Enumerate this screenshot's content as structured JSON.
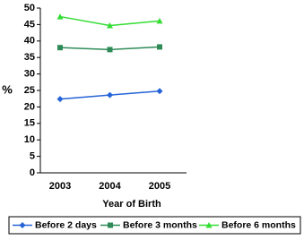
{
  "chart_data": {
    "type": "line",
    "categories": [
      "2003",
      "2004",
      "2005"
    ],
    "x_label": "Year of Birth",
    "y_label": "%",
    "ylim": [
      0,
      50
    ],
    "yticks": [
      0,
      5,
      10,
      15,
      20,
      25,
      30,
      35,
      40,
      45,
      50
    ],
    "legend": "bottom",
    "series": [
      {
        "name": "Before 2 days",
        "color": "#2563d6",
        "marker": "diamond",
        "values": [
          22.4,
          23.6,
          24.8
        ]
      },
      {
        "name": "Before 3 months",
        "color": "#2e8b57",
        "marker": "square",
        "values": [
          38.0,
          37.4,
          38.2
        ]
      },
      {
        "name": "Before 6 months",
        "color": "#33dd33",
        "marker": "triangle",
        "values": [
          47.4,
          44.7,
          46.1
        ]
      }
    ]
  }
}
